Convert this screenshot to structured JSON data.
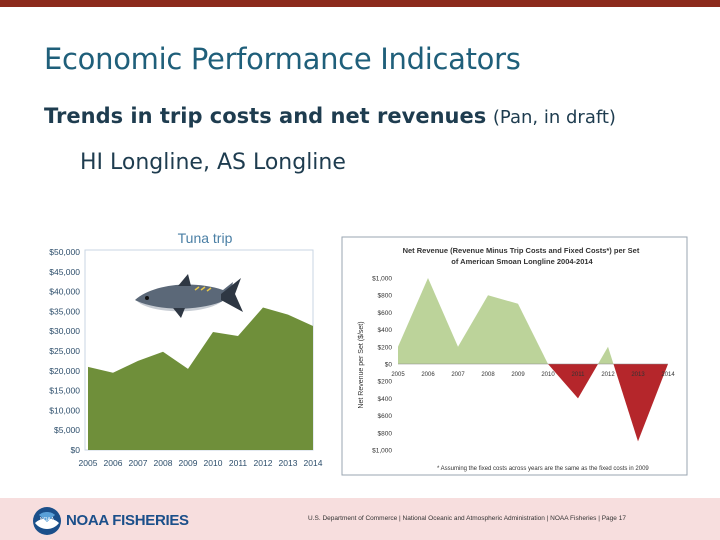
{
  "slide": {
    "title": "Economic Performance Indicators",
    "subtitle_strong": "Trends in trip costs and net revenues",
    "subtitle_note": "(Pan, in draft)",
    "subtitle_line2": "HI Longline, AS Longline"
  },
  "footer": {
    "brand": "NOAA FISHERIES",
    "text": "U.S. Department of Commerce | National Oceanic and Atmospheric Administration | NOAA Fisheries | Page 17",
    "color": "#f7dede"
  },
  "chart_data": [
    {
      "type": "area",
      "title": "Tuna trip",
      "categories": [
        "2005",
        "2006",
        "2007",
        "2008",
        "2009",
        "2010",
        "2011",
        "2012",
        "2013",
        "2014"
      ],
      "values": [
        21000,
        19500,
        22500,
        24800,
        20500,
        29800,
        28800,
        36000,
        34200,
        31300
      ],
      "ylim": [
        0,
        50000
      ],
      "yticks": [
        "$0",
        "$5,000",
        "$10,000",
        "$15,000",
        "$20,000",
        "$25,000",
        "$30,000",
        "$35,000",
        "$40,000",
        "$45,000",
        "$50,000"
      ],
      "fill_color": "#6f8f3a",
      "grid": false
    },
    {
      "type": "area",
      "title": "Net Revenue (Revenue Minus Trip Costs and Fixed Costs*) per Set of American Smoan Longline 2004-2014",
      "categories": [
        "2005",
        "2006",
        "2007",
        "2008",
        "2009",
        "2010",
        "2011",
        "2012",
        "2013",
        "2014"
      ],
      "values": [
        200,
        1000,
        200,
        800,
        700,
        0,
        -400,
        200,
        -900,
        0
      ],
      "ylabel": "Net Revenue per Set ($/set)",
      "ylim": [
        -1000,
        1000
      ],
      "yticks": [
        "$1,000",
        "$800",
        "$600",
        "$400",
        "$200",
        "$0",
        "$200",
        "$400",
        "$600",
        "$800",
        "$1,000"
      ],
      "positive_color": "#bcd39a",
      "negative_color": "#b5262b",
      "footnote": "* Assuming the fixed costs across years are the same as the fixed costs in 2009",
      "grid": false
    }
  ]
}
